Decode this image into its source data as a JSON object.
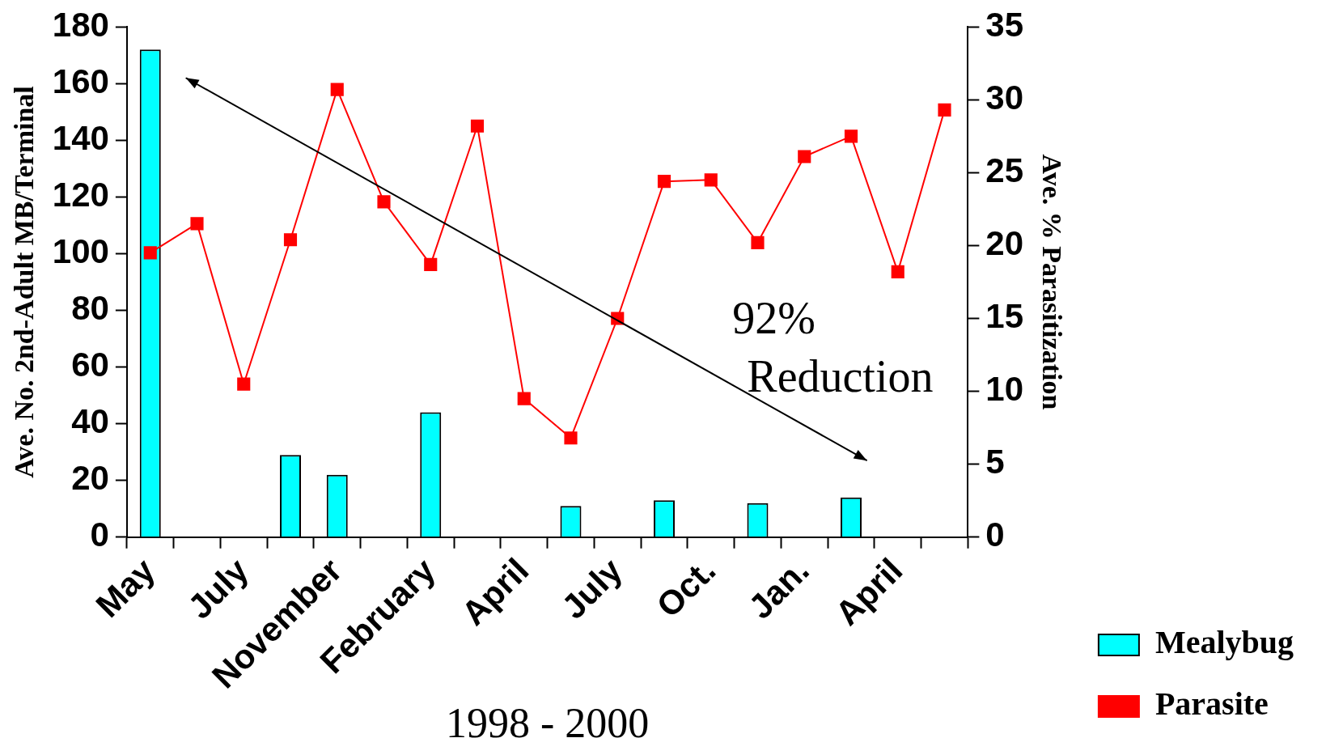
{
  "chart_data": {
    "type": "bar",
    "xlabel": "1998 - 2000",
    "ylabel": "Ave. No. 2nd-Adult MB/Terminal",
    "y2label": "Ave. % Parasitization",
    "categories": [
      "May",
      null,
      "July",
      null,
      "November",
      null,
      "February",
      null,
      "April",
      null,
      "July",
      null,
      "Oct.",
      null,
      "Jan.",
      null,
      "April",
      null
    ],
    "series": [
      {
        "name": "Mealybug",
        "type": "bar",
        "color": "#00ffff",
        "values": [
          172,
          null,
          null,
          29,
          22,
          null,
          44,
          null,
          null,
          11,
          null,
          13,
          null,
          12,
          null,
          14,
          null,
          null
        ]
      },
      {
        "name": "Parasite",
        "type": "line",
        "axis": "y2",
        "color": "#ff0000",
        "values": [
          19.5,
          21.5,
          10.5,
          20.4,
          30.7,
          23.0,
          18.7,
          28.2,
          9.5,
          6.8,
          15.0,
          24.4,
          24.5,
          20.2,
          26.1,
          27.5,
          18.2,
          29.3
        ]
      }
    ],
    "ylim": [
      0,
      180
    ],
    "yticks": [
      0,
      20,
      40,
      60,
      80,
      100,
      120,
      140,
      160,
      180
    ],
    "y2lim": [
      0,
      35
    ],
    "y2ticks": [
      0,
      5,
      10,
      15,
      20,
      25,
      30,
      35
    ],
    "marker": "square",
    "legend": "right",
    "grid": false,
    "annotations": [
      "92% Reduction"
    ]
  }
}
